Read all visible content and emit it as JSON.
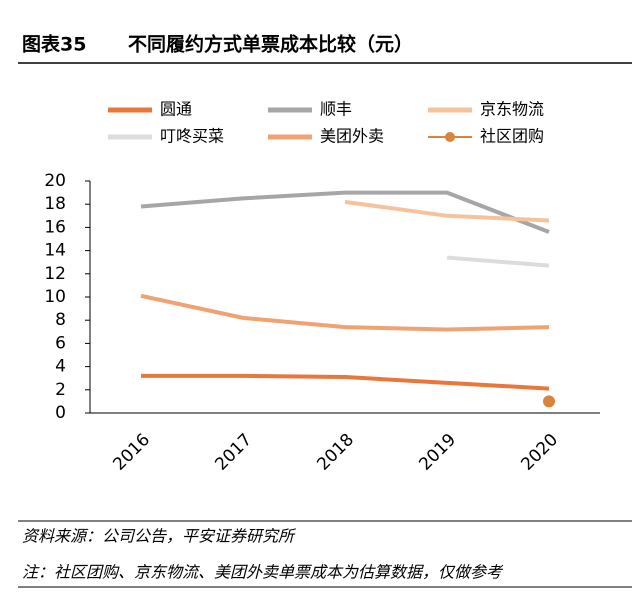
{
  "figure_label": "图表35",
  "source": "资料来源：公司公告，平安证券研究所",
  "note": "注：社区团购、京东物流、美团外卖单票成本为估算数据，仅做参考",
  "chart_data": {
    "type": "line",
    "title": "不同履约方式单票成本比较（元）",
    "categories": [
      "2016",
      "2017",
      "2018",
      "2019",
      "2020"
    ],
    "ylim": [
      0,
      20
    ],
    "yticks": [
      0,
      2,
      4,
      6,
      8,
      10,
      12,
      14,
      16,
      18,
      20
    ],
    "series": [
      {
        "name": "圆通",
        "color": "#e8773a",
        "mode": "line",
        "values": [
          3.2,
          3.2,
          3.1,
          2.6,
          2.1
        ]
      },
      {
        "name": "顺丰",
        "color": "#a6a6a6",
        "mode": "line",
        "values": [
          17.8,
          18.5,
          19.0,
          19.0,
          15.6
        ]
      },
      {
        "name": "京东物流",
        "color": "#f6c29e",
        "mode": "line",
        "values": [
          null,
          null,
          18.2,
          17.0,
          16.6
        ]
      },
      {
        "name": "叮咚买菜",
        "color": "#dcdcdc",
        "mode": "line",
        "values": [
          null,
          null,
          null,
          13.4,
          12.7
        ]
      },
      {
        "name": "美团外卖",
        "color": "#f0a272",
        "mode": "line",
        "values": [
          10.1,
          8.2,
          7.4,
          7.2,
          7.4
        ]
      },
      {
        "name": "社区团购",
        "color": "#d9843a",
        "mode": "point",
        "values": [
          null,
          null,
          null,
          null,
          1.0
        ]
      }
    ]
  }
}
